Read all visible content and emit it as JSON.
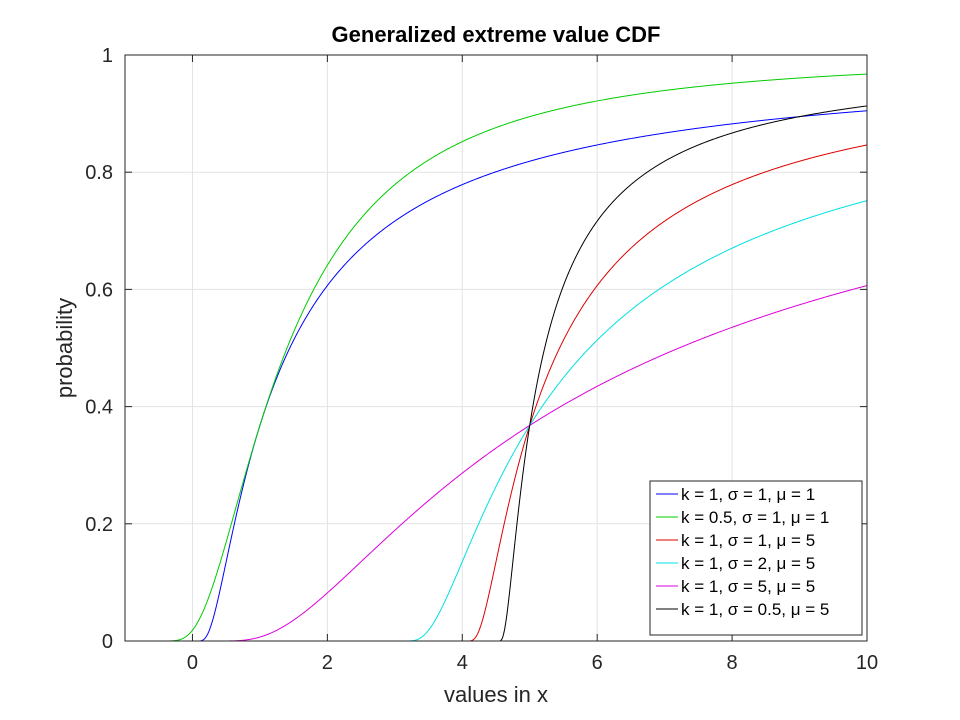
{
  "chart_data": {
    "type": "line",
    "title": "Generalized extreme value CDF",
    "xlabel": "values in x",
    "ylabel": "probability",
    "xlim": [
      -1,
      10
    ],
    "ylim": [
      0,
      1
    ],
    "xticks": [
      0,
      2,
      4,
      6,
      8,
      10
    ],
    "yticks": [
      0,
      0.2,
      0.4,
      0.6,
      0.8,
      1
    ],
    "xtick_labels": [
      "0",
      "2",
      "4",
      "6",
      "8",
      "10"
    ],
    "ytick_labels": [
      "0",
      "0.2",
      "0.4",
      "0.6",
      "0.8",
      "1"
    ],
    "grid": true,
    "legend_position": "bottom-right",
    "series": [
      {
        "name": "k = 1, σ = 1, μ = 1",
        "k": 1,
        "sigma": 1,
        "mu": 1,
        "color": "#0000ff"
      },
      {
        "name": "k = 0.5, σ = 1, μ = 1",
        "k": 0.5,
        "sigma": 1,
        "mu": 1,
        "color": "#00cc00"
      },
      {
        "name": "k = 1, σ = 1, μ = 5",
        "k": 1,
        "sigma": 1,
        "mu": 5,
        "color": "#dd0000"
      },
      {
        "name": "k = 1, σ = 2, μ = 5",
        "k": 1,
        "sigma": 2,
        "mu": 5,
        "color": "#00e0e0"
      },
      {
        "name": "k = 1, σ = 5, μ = 5",
        "k": 1,
        "sigma": 5,
        "mu": 5,
        "color": "#dd00dd"
      },
      {
        "name": "k = 1, σ = 0.5, μ = 5",
        "k": 1,
        "sigma": 0.5,
        "mu": 5,
        "color": "#000000"
      }
    ]
  }
}
